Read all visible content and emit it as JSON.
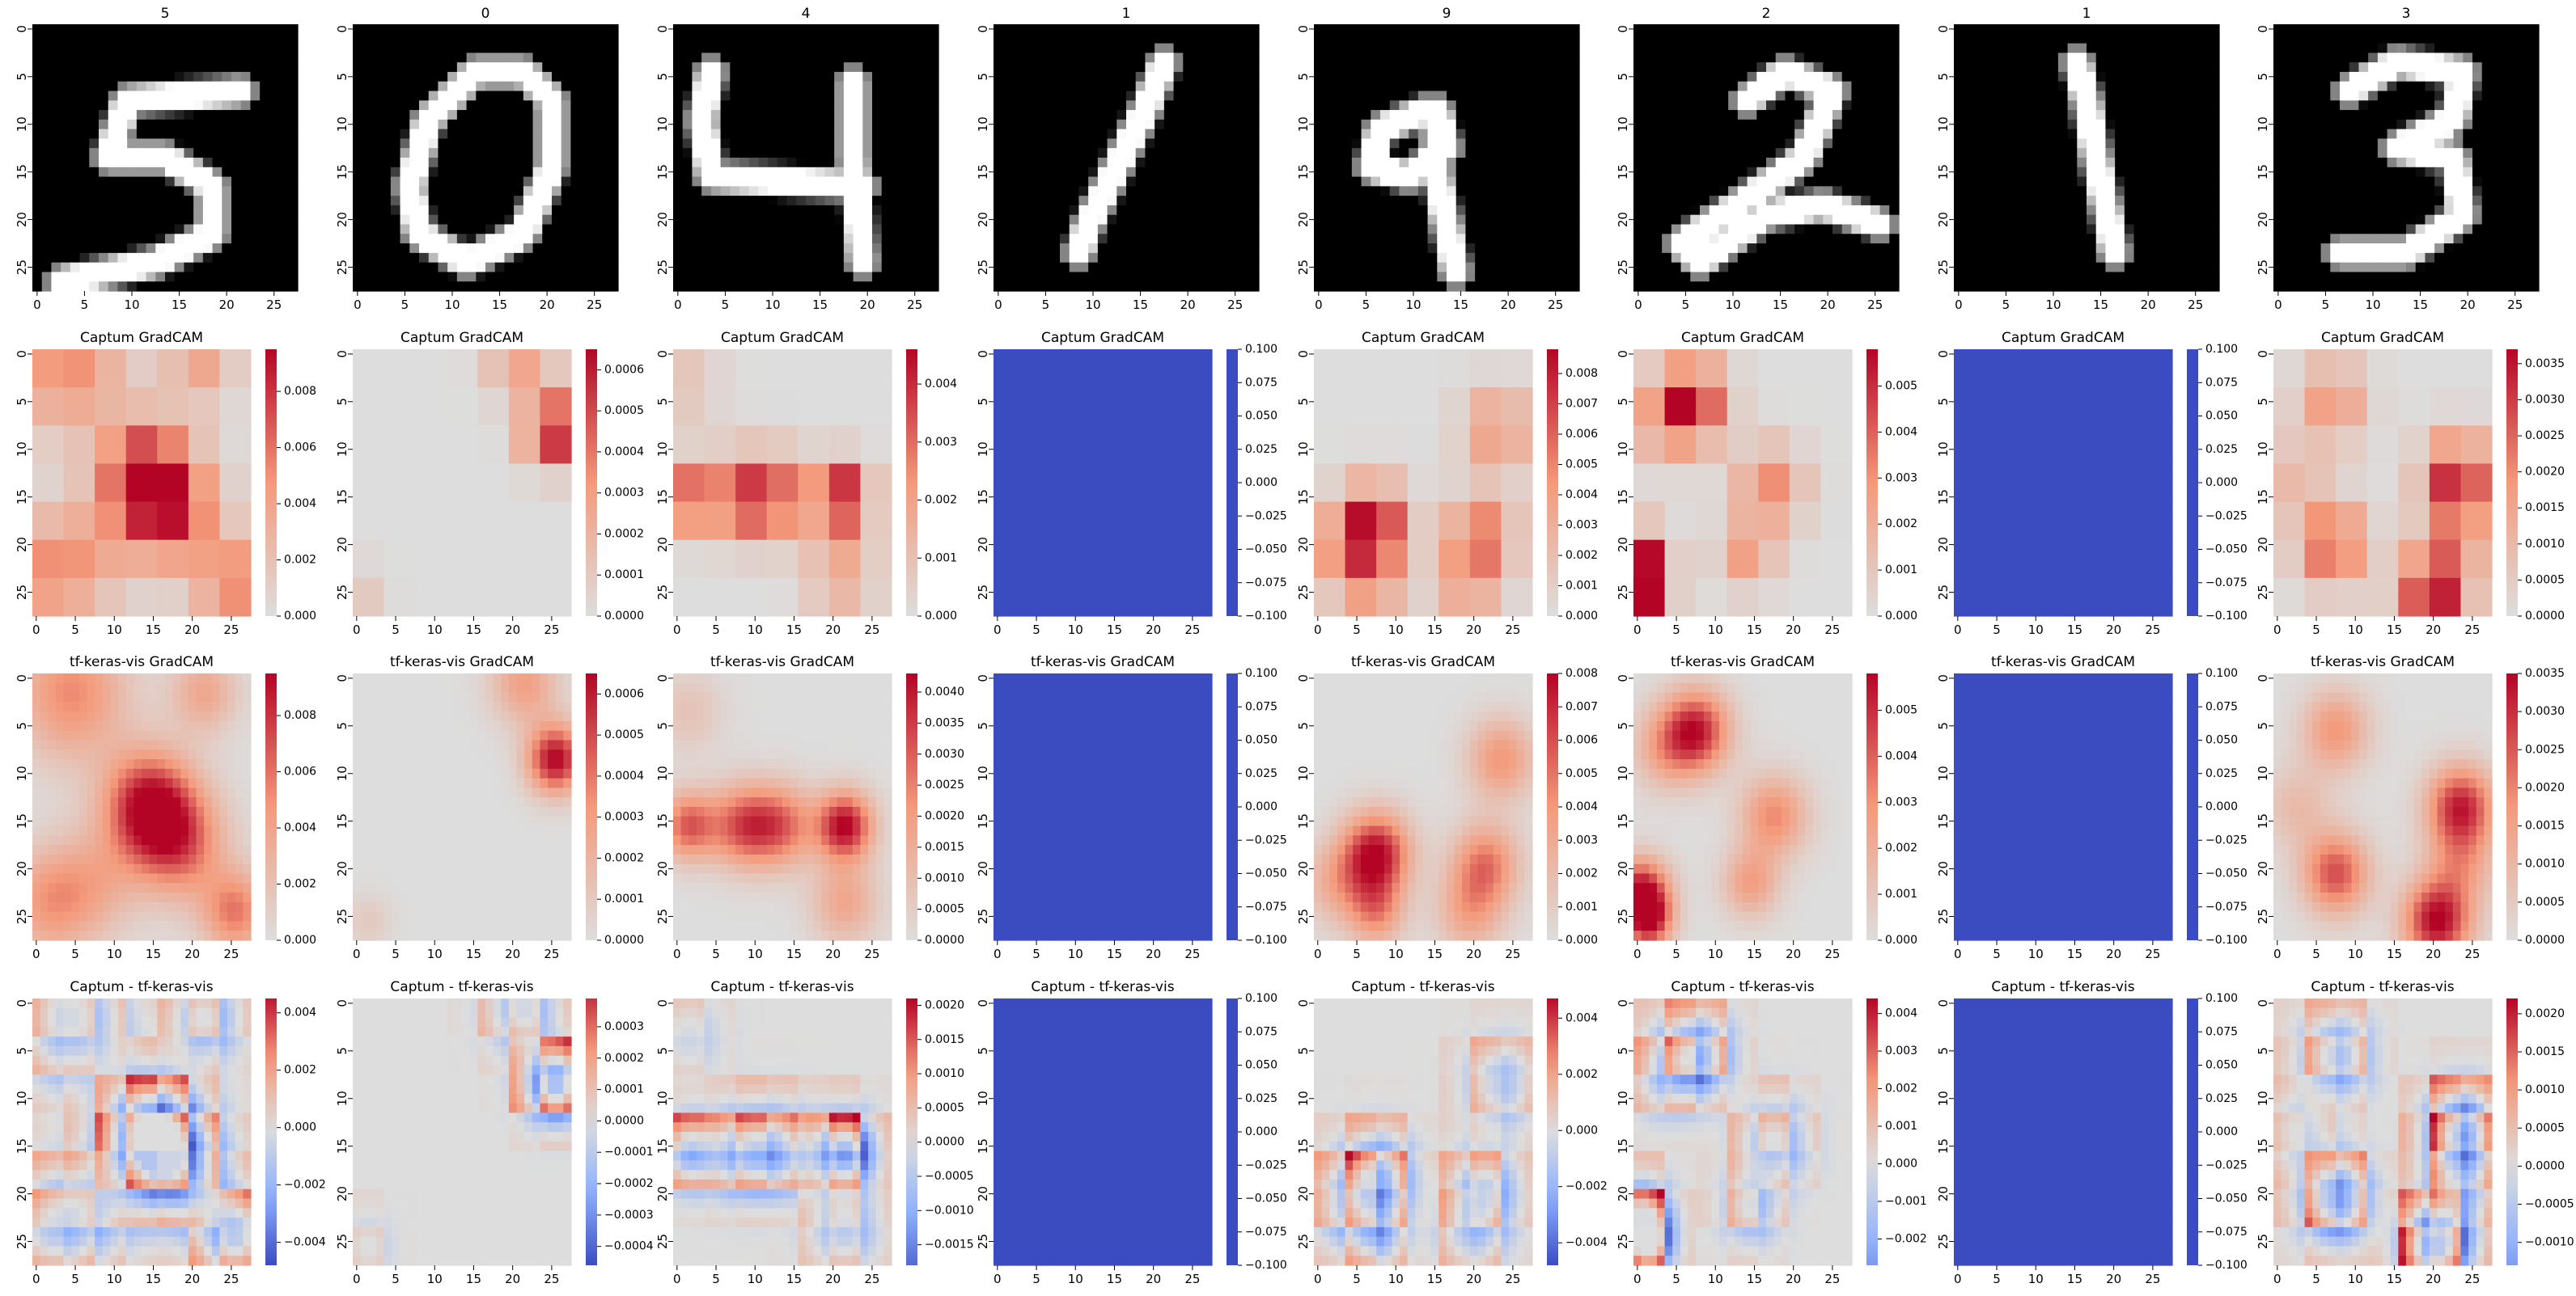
{
  "colors": {
    "gray_digit_bg": "#000000",
    "coolwarm_blue": "#3b4cc0",
    "coolwarm_mid": "#dddddd",
    "coolwarm_red": "#b40426"
  },
  "chart_data": {
    "type": "heatmap",
    "rows": [
      "digit",
      "captum",
      "tfkeras",
      "diff"
    ],
    "row_titles": [
      "",
      "Captum GradCAM",
      "tf-keras-vis GradCAM",
      "Captum - tf-keras-vis"
    ],
    "axis_ticks": [
      "0",
      "5",
      "10",
      "15",
      "20",
      "25"
    ],
    "columns": [
      {
        "label": "5",
        "digit": "5",
        "captum": {
          "ticks": [
            "0.000",
            "0.002",
            "0.004",
            "0.006",
            "0.008"
          ],
          "vmin": 0,
          "vmax": 0.0095
        },
        "tfkeras": {
          "ticks": [
            "0.000",
            "0.002",
            "0.004",
            "0.006",
            "0.008"
          ],
          "vmin": 0,
          "vmax": 0.0095
        },
        "diff": {
          "ticks": [
            "0.004",
            "0.002",
            "0.000",
            "−0.002",
            "−0.004"
          ],
          "vmin": -0.0048,
          "vmax": 0.0045
        }
      },
      {
        "label": "0",
        "digit": "0",
        "captum": {
          "ticks": [
            "0.0006",
            "0.0005",
            "0.0004",
            "0.0003",
            "0.0002",
            "0.0001",
            "0.0000"
          ],
          "vmin": 0,
          "vmax": 0.00065
        },
        "tfkeras": {
          "ticks": [
            "0.0006",
            "0.0005",
            "0.0004",
            "0.0003",
            "0.0002",
            "0.0001",
            "0.0000"
          ],
          "vmin": 0,
          "vmax": 0.00065
        },
        "diff": {
          "ticks": [
            "0.0003",
            "0.0002",
            "0.0001",
            "0.0000",
            "−0.0001",
            "−0.0002",
            "−0.0003",
            "−0.0004"
          ],
          "vmin": -0.00046,
          "vmax": 0.00039
        }
      },
      {
        "label": "4",
        "digit": "4",
        "captum": {
          "ticks": [
            "0.004",
            "0.003",
            "0.002",
            "0.001",
            "0.000"
          ],
          "vmin": 0,
          "vmax": 0.0046
        },
        "tfkeras": {
          "ticks": [
            "0.0040",
            "0.0035",
            "0.0030",
            "0.0025",
            "0.0020",
            "0.0015",
            "0.0010",
            "0.0005",
            "0.0000"
          ],
          "vmin": 0,
          "vmax": 0.0043
        },
        "diff": {
          "ticks": [
            "0.0020",
            "0.0015",
            "0.0010",
            "0.0005",
            "0.0000",
            "−0.0005",
            "−0.0010",
            "−0.0015"
          ],
          "vmin": -0.0018,
          "vmax": 0.0021
        }
      },
      {
        "label": "1",
        "digit": "1",
        "captum": {
          "ticks": [
            "0.100",
            "0.075",
            "0.050",
            "0.025",
            "0.000",
            "−0.025",
            "−0.050",
            "−0.075",
            "−0.100"
          ],
          "vmin": -0.1,
          "vmax": 0.1,
          "constant": true
        },
        "tfkeras": {
          "ticks": [
            "0.100",
            "0.075",
            "0.050",
            "0.025",
            "0.000",
            "−0.025",
            "−0.050",
            "−0.075",
            "−0.100"
          ],
          "vmin": -0.1,
          "vmax": 0.1,
          "constant": true
        },
        "diff": {
          "ticks": [
            "0.100",
            "0.075",
            "0.050",
            "0.025",
            "0.000",
            "−0.025",
            "−0.050",
            "−0.075",
            "−0.100"
          ],
          "vmin": -0.1,
          "vmax": 0.1,
          "constant": true
        }
      },
      {
        "label": "9",
        "digit": "9",
        "captum": {
          "ticks": [
            "0.008",
            "0.007",
            "0.006",
            "0.005",
            "0.004",
            "0.003",
            "0.002",
            "0.001",
            "0.000"
          ],
          "vmin": 0,
          "vmax": 0.0088
        },
        "tfkeras": {
          "ticks": [
            "0.008",
            "0.007",
            "0.006",
            "0.005",
            "0.004",
            "0.003",
            "0.002",
            "0.001",
            "0.000"
          ],
          "vmin": 0,
          "vmax": 0.008
        },
        "diff": {
          "ticks": [
            "0.004",
            "0.002",
            "0.000",
            "−0.002",
            "−0.004"
          ],
          "vmin": -0.0048,
          "vmax": 0.0047
        }
      },
      {
        "label": "2",
        "digit": "2",
        "captum": {
          "ticks": [
            "0.005",
            "0.004",
            "0.003",
            "0.002",
            "0.001",
            "0.000"
          ],
          "vmin": 0,
          "vmax": 0.0058
        },
        "tfkeras": {
          "ticks": [
            "0.005",
            "0.004",
            "0.003",
            "0.002",
            "0.001",
            "0.000"
          ],
          "vmin": 0,
          "vmax": 0.0058
        },
        "diff": {
          "ticks": [
            "0.004",
            "0.003",
            "0.002",
            "0.001",
            "0.000",
            "−0.001",
            "−0.002"
          ],
          "vmin": -0.0027,
          "vmax": 0.0044
        }
      },
      {
        "label": "1",
        "digit": "1b",
        "captum": {
          "ticks": [
            "0.100",
            "0.075",
            "0.050",
            "0.025",
            "0.000",
            "−0.025",
            "−0.050",
            "−0.075",
            "−0.100"
          ],
          "vmin": -0.1,
          "vmax": 0.1,
          "constant": true
        },
        "tfkeras": {
          "ticks": [
            "0.100",
            "0.075",
            "0.050",
            "0.025",
            "0.000",
            "−0.025",
            "−0.050",
            "−0.075",
            "−0.100"
          ],
          "vmin": -0.1,
          "vmax": 0.1,
          "constant": true
        },
        "diff": {
          "ticks": [
            "0.100",
            "0.075",
            "0.050",
            "0.025",
            "0.000",
            "−0.025",
            "−0.050",
            "−0.075",
            "−0.100"
          ],
          "vmin": -0.1,
          "vmax": 0.1,
          "constant": true
        }
      },
      {
        "label": "3",
        "digit": "3",
        "captum": {
          "ticks": [
            "0.0035",
            "0.0030",
            "0.0025",
            "0.0020",
            "0.0015",
            "0.0010",
            "0.0005",
            "0.0000"
          ],
          "vmin": 0,
          "vmax": 0.0037
        },
        "tfkeras": {
          "ticks": [
            "0.0035",
            "0.0030",
            "0.0025",
            "0.0020",
            "0.0015",
            "0.0010",
            "0.0005",
            "0.0000"
          ],
          "vmin": 0,
          "vmax": 0.0035
        },
        "diff": {
          "ticks": [
            "0.0020",
            "0.0015",
            "0.0010",
            "0.0005",
            "0.0000",
            "−0.0005",
            "−0.0010"
          ],
          "vmin": -0.0013,
          "vmax": 0.0022
        }
      }
    ]
  }
}
